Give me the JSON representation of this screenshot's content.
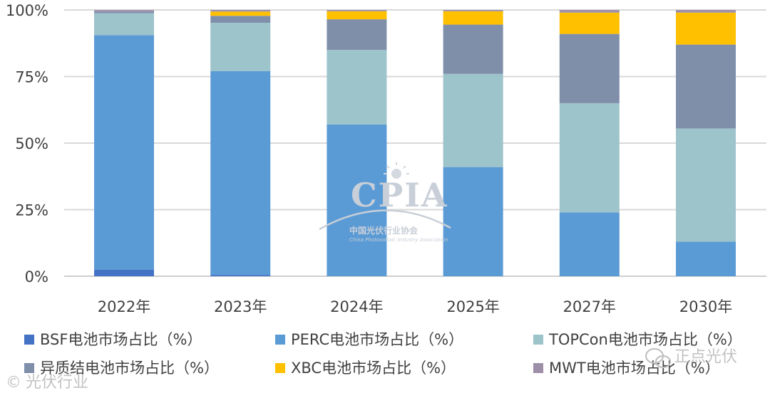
{
  "chart_data": {
    "type": "bar",
    "stacked": true,
    "normalized": true,
    "title": "",
    "xlabel": "",
    "ylabel": "",
    "ylim": [
      0,
      100
    ],
    "y_ticks": [
      "0%",
      "25%",
      "50%",
      "75%",
      "100%"
    ],
    "y_tick_values": [
      0,
      25,
      50,
      75,
      100
    ],
    "categories": [
      "2022年",
      "2023年",
      "2024年",
      "2025年",
      "2027年",
      "2030年"
    ],
    "series": [
      {
        "name": "BSF电池市场占比（%）",
        "color": "#4472c4",
        "values": [
          2.5,
          0.5,
          0,
          0,
          0,
          0
        ]
      },
      {
        "name": "PERC电池市场占比（%）",
        "color": "#5b9bd5",
        "values": [
          88,
          76.5,
          57,
          41,
          24,
          13
        ]
      },
      {
        "name": "TOPCon电池市场占比（%）",
        "color": "#9dc3cb",
        "values": [
          8.3,
          18.2,
          28,
          35,
          41,
          42.5
        ]
      },
      {
        "name": "异质结电池市场占比（%）",
        "color": "#7f8faa",
        "values": [
          0.6,
          2.6,
          11.5,
          18.5,
          26,
          31.5
        ]
      },
      {
        "name": "XBC电池市场占比（%）",
        "color": "#ffc000",
        "values": [
          0,
          1.6,
          3,
          5,
          8,
          12
        ]
      },
      {
        "name": "MWT电池市场占比（%）",
        "color": "#9e8fa8",
        "values": [
          0.6,
          0.6,
          0.5,
          0.5,
          1,
          1
        ]
      }
    ],
    "legend_position": "bottom",
    "grid": true
  },
  "watermark": {
    "logo_text": "CPIA",
    "org_cn": "中国光伏行业协会",
    "org_en": "China Photovoltaic Industry Association",
    "source_left": "光伏行业",
    "source_right": "正点光伏"
  }
}
